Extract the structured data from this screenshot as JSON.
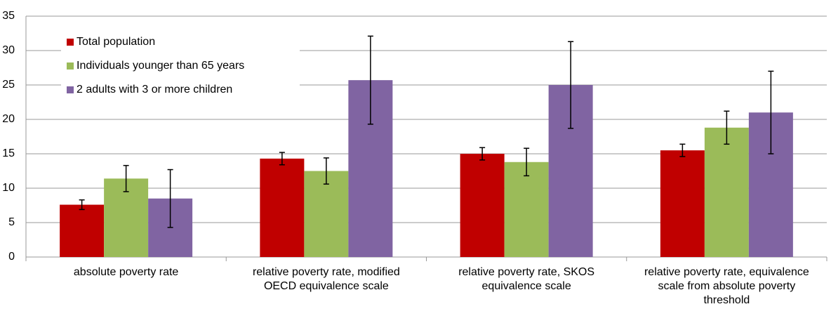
{
  "chart_data": {
    "type": "bar",
    "categories": [
      "absolute poverty rate",
      "relative poverty rate, modified OECD equivalence scale",
      "relative poverty rate, SKOS equivalence scale",
      "relative poverty rate, equivalence scale from absolute poverty threshold"
    ],
    "series": [
      {
        "name": "Total population",
        "color": "#c00000",
        "values": [
          7.6,
          14.3,
          15.0,
          15.5
        ],
        "errors": [
          0.7,
          0.9,
          0.9,
          0.9
        ]
      },
      {
        "name": "Individuals younger than 65 years",
        "color": "#9bbb59",
        "values": [
          11.4,
          12.5,
          13.8,
          18.8
        ],
        "errors": [
          1.9,
          1.9,
          2.0,
          2.4
        ]
      },
      {
        "name": "2 adults with 3 or more children",
        "color": "#8064a2",
        "values": [
          8.5,
          25.7,
          25.0,
          21.0
        ],
        "errors": [
          4.2,
          6.4,
          6.3,
          6.0
        ]
      }
    ],
    "ylim": [
      0,
      35
    ],
    "yticks": [
      0,
      5,
      10,
      15,
      20,
      25,
      30,
      35
    ],
    "grid": true,
    "legend": "upper left"
  }
}
